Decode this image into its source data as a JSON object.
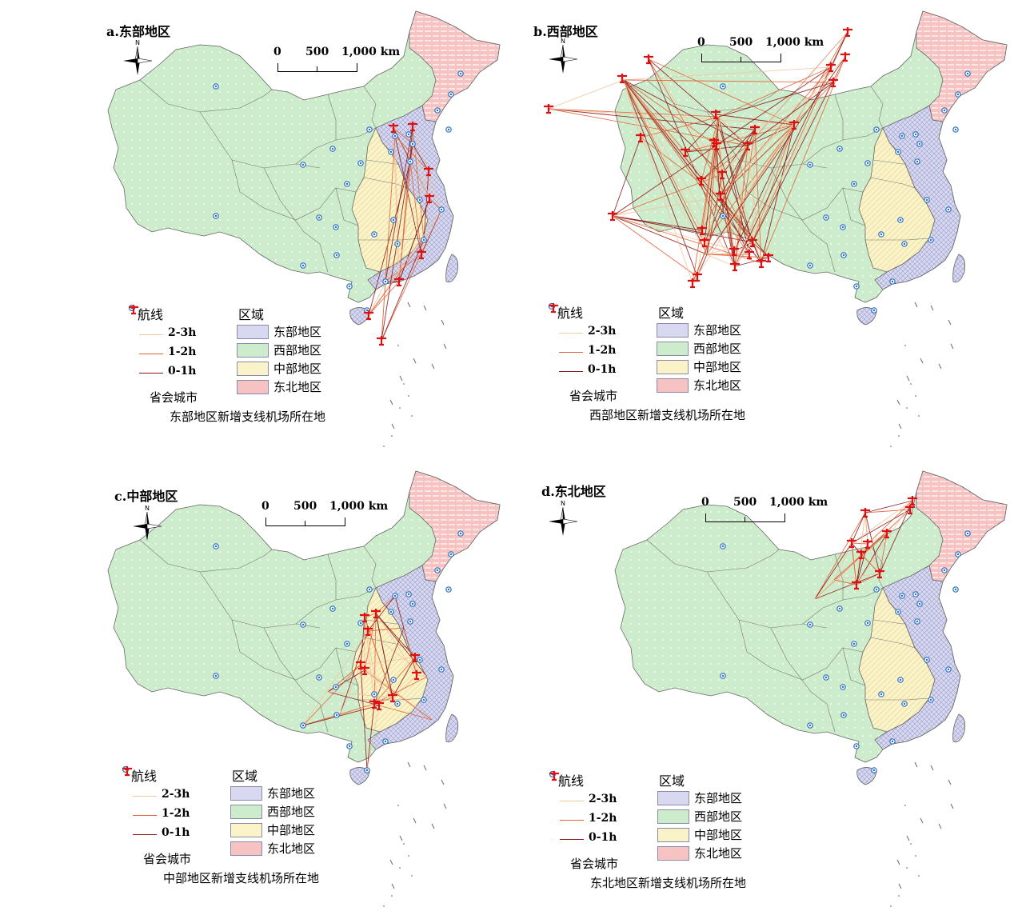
{
  "panels": [
    {
      "title": "a.东部地区",
      "airport_label": "东部地区新增支线机场所在地",
      "scale": [
        "0",
        "500",
        "1,000 km"
      ]
    },
    {
      "title": "b.西部地区",
      "airport_label": "西部地区新增支线机场所在地",
      "scale": [
        "0",
        "500",
        "1,000 km"
      ]
    },
    {
      "title": "c.中部地区",
      "airport_label": "中部地区新增支线机场所在地",
      "scale": [
        "0",
        "500",
        "1,000 km"
      ]
    },
    {
      "title": "d.东北地区",
      "airport_label": "东北地区新增支线机场所在地",
      "scale": [
        "0",
        "500",
        "1,000 km"
      ]
    }
  ],
  "legend": {
    "routes_title": "航线",
    "routes": [
      {
        "label": "2-3h",
        "color": "#f1c6a0"
      },
      {
        "label": "1-2h",
        "color": "#e0643a"
      },
      {
        "label": "0-1h",
        "color": "#8b1a1a"
      }
    ],
    "regions_title": "区域",
    "regions": [
      {
        "label": "东部地区",
        "color": "#d8d9f0"
      },
      {
        "label": "西部地区",
        "color": "#cdeccb"
      },
      {
        "label": "中部地区",
        "color": "#fbf3c8"
      },
      {
        "label": "东北地区",
        "color": "#f6c2c2"
      }
    ],
    "capital_label": "省会城市"
  },
  "north_label": "N",
  "colors": {
    "capital": "#2a6fc7",
    "airport": "#dd1111",
    "border": "#666666"
  },
  "icons": [
    "north-arrow-icon",
    "capital-city-icon",
    "airport-icon"
  ]
}
